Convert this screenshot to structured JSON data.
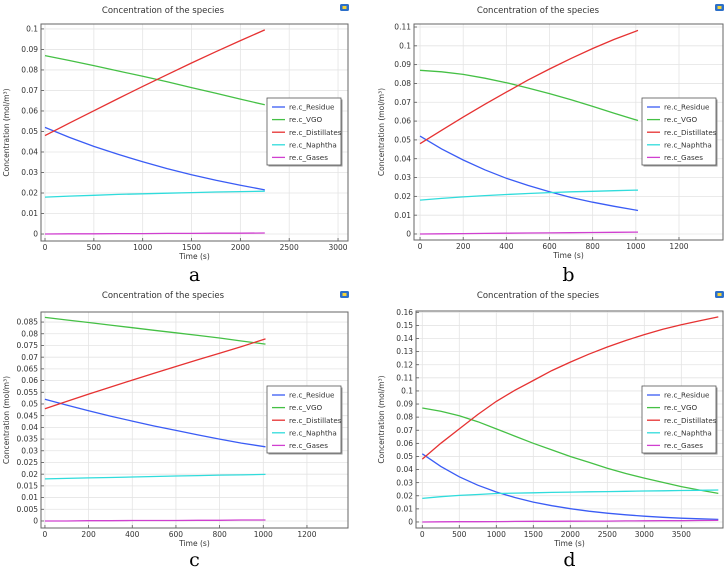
{
  "chart_data": [
    {
      "id": "a",
      "caption": "a",
      "type": "line",
      "title": "Concentration of the species",
      "xlabel": "Time (s)",
      "ylabel": "Concentration (mol/m³)",
      "xlim": [
        -41,
        3102
      ],
      "ylim": [
        -0.0034,
        0.1024
      ],
      "xticks": [
        "0",
        "500",
        "1000",
        "1500",
        "2000",
        "2500",
        "3000"
      ],
      "xtick_values": [
        0,
        500,
        1000,
        1500,
        2000,
        2500,
        3000
      ],
      "yticks": [
        "0",
        "0.01",
        "0.02",
        "0.03",
        "0.04",
        "0.05",
        "0.06",
        "0.07",
        "0.08",
        "0.09",
        "0.1"
      ],
      "ytick_values": [
        0,
        0.01,
        0.02,
        0.03,
        0.04,
        0.05,
        0.06,
        0.07,
        0.08,
        0.09,
        0.1
      ],
      "grid": true,
      "legend_position": "right",
      "x": [
        0,
        250,
        500,
        750,
        1000,
        1250,
        1500,
        1750,
        2000,
        2250
      ],
      "series": [
        {
          "name": "re.c_Residue",
          "color": "#3a5cf5",
          "values": [
            0.052,
            0.0471,
            0.0427,
            0.0388,
            0.0352,
            0.0319,
            0.0289,
            0.0262,
            0.0238,
            0.0215
          ]
        },
        {
          "name": "re.c_VGO",
          "color": "#45c045",
          "values": [
            0.087,
            0.0846,
            0.0821,
            0.0795,
            0.0769,
            0.0742,
            0.0714,
            0.0686,
            0.0658,
            0.063
          ]
        },
        {
          "name": "re.c_Distillates",
          "color": "#e63232",
          "values": [
            0.048,
            0.0541,
            0.0601,
            0.0661,
            0.072,
            0.0777,
            0.0834,
            0.0889,
            0.0943,
            0.0995
          ]
        },
        {
          "name": "re.c_Naphtha",
          "color": "#30dcdc",
          "values": [
            0.018,
            0.0185,
            0.0189,
            0.0193,
            0.0196,
            0.0199,
            0.0202,
            0.0205,
            0.0207,
            0.0209
          ]
        },
        {
          "name": "re.c_Gases",
          "color": "#d040d0",
          "values": [
            0,
            0.0001,
            0.0001,
            0.0002,
            0.0002,
            0.0003,
            0.0003,
            0.0004,
            0.0004,
            0.0005
          ]
        }
      ]
    },
    {
      "id": "b",
      "caption": "b",
      "type": "line",
      "title": "Concentration of the species",
      "xlabel": "Time (s)",
      "ylabel": "Concentration (mol/m³)",
      "xlim": [
        -28,
        1404
      ],
      "ylim": [
        -0.0032,
        0.1116
      ],
      "xticks": [
        "0",
        "200",
        "400",
        "600",
        "800",
        "1000",
        "1200"
      ],
      "xtick_values": [
        0,
        200,
        400,
        600,
        800,
        1000,
        1200
      ],
      "yticks": [
        "0",
        "0.01",
        "0.02",
        "0.03",
        "0.04",
        "0.05",
        "0.06",
        "0.07",
        "0.08",
        "0.09",
        "0.1",
        "0.11"
      ],
      "ytick_values": [
        0,
        0.01,
        0.02,
        0.03,
        0.04,
        0.05,
        0.06,
        0.07,
        0.08,
        0.09,
        0.1,
        0.11
      ],
      "grid": true,
      "legend_position": "right",
      "x": [
        0,
        100,
        200,
        300,
        400,
        500,
        600,
        700,
        800,
        900,
        1010
      ],
      "series": [
        {
          "name": "re.c_Residue",
          "color": "#3a5cf5",
          "values": [
            0.052,
            0.0452,
            0.0393,
            0.0341,
            0.0296,
            0.0258,
            0.0224,
            0.0194,
            0.0169,
            0.0147,
            0.0125
          ]
        },
        {
          "name": "re.c_VGO",
          "color": "#45c045",
          "values": [
            0.087,
            0.0862,
            0.0848,
            0.0828,
            0.0804,
            0.0776,
            0.0746,
            0.0713,
            0.0678,
            0.0642,
            0.0603
          ]
        },
        {
          "name": "re.c_Distillates",
          "color": "#e63232",
          "values": [
            0.048,
            0.0551,
            0.0621,
            0.0689,
            0.0754,
            0.0818,
            0.0877,
            0.0933,
            0.0986,
            0.1034,
            0.1082
          ]
        },
        {
          "name": "re.c_Naphtha",
          "color": "#30dcdc",
          "values": [
            0.018,
            0.0189,
            0.0197,
            0.0204,
            0.021,
            0.0215,
            0.022,
            0.0224,
            0.0227,
            0.023,
            0.0233
          ]
        },
        {
          "name": "re.c_Gases",
          "color": "#d040d0",
          "values": [
            0,
            0.0001,
            0.0002,
            0.0003,
            0.0004,
            0.0005,
            0.0006,
            0.0007,
            0.0008,
            0.0009,
            0.001
          ]
        }
      ]
    },
    {
      "id": "c",
      "caption": "c",
      "type": "line",
      "title": "Concentration of the species",
      "xlabel": "Time (s)",
      "ylabel": "Concentration (mol/m³)",
      "xlim": [
        -18,
        1388
      ],
      "ylim": [
        -0.003,
        0.0893
      ],
      "xticks": [
        "0",
        "200",
        "400",
        "600",
        "800",
        "1000",
        "1200"
      ],
      "xtick_values": [
        0,
        200,
        400,
        600,
        800,
        1000,
        1200
      ],
      "yticks": [
        "0",
        "0.005",
        "0.01",
        "0.015",
        "0.02",
        "0.025",
        "0.03",
        "0.035",
        "0.04",
        "0.045",
        "0.05",
        "0.055",
        "0.06",
        "0.065",
        "0.07",
        "0.075",
        "0.08",
        "0.085"
      ],
      "ytick_values": [
        0,
        0.005,
        0.01,
        0.015,
        0.02,
        0.025,
        0.03,
        0.035,
        0.04,
        0.045,
        0.05,
        0.055,
        0.06,
        0.065,
        0.07,
        0.075,
        0.08,
        0.085
      ],
      "grid": true,
      "legend_position": "right",
      "x": [
        0,
        100,
        200,
        300,
        400,
        500,
        600,
        700,
        800,
        900,
        1010
      ],
      "series": [
        {
          "name": "re.c_Residue",
          "color": "#3a5cf5",
          "values": [
            0.052,
            0.0495,
            0.0471,
            0.0448,
            0.0427,
            0.0406,
            0.0387,
            0.0368,
            0.035,
            0.0333,
            0.0317
          ]
        },
        {
          "name": "re.c_VGO",
          "color": "#45c045",
          "values": [
            0.087,
            0.0859,
            0.0848,
            0.0837,
            0.0826,
            0.0815,
            0.0804,
            0.0793,
            0.0782,
            0.0769,
            0.0756
          ]
        },
        {
          "name": "re.c_Distillates",
          "color": "#e63232",
          "values": [
            0.048,
            0.0511,
            0.0542,
            0.0572,
            0.0602,
            0.0631,
            0.066,
            0.0689,
            0.0717,
            0.0745,
            0.0778
          ]
        },
        {
          "name": "re.c_Naphtha",
          "color": "#30dcdc",
          "values": [
            0.018,
            0.0182,
            0.0184,
            0.0186,
            0.0188,
            0.019,
            0.0192,
            0.0194,
            0.0196,
            0.0197,
            0.0199
          ]
        },
        {
          "name": "re.c_Gases",
          "color": "#d040d0",
          "values": [
            0,
            0,
            0.0001,
            0.0001,
            0.0002,
            0.0002,
            0.0002,
            0.0003,
            0.0003,
            0.0004,
            0.0004
          ]
        }
      ]
    },
    {
      "id": "d",
      "caption": "d",
      "type": "line",
      "title": "Concentration of the species",
      "xlabel": "Time (s)",
      "ylabel": "Concentration (mol/m³)",
      "xlim": [
        -85,
        4063
      ],
      "ylim": [
        -0.0046,
        0.161
      ],
      "xticks": [
        "0",
        "500",
        "1000",
        "1500",
        "2000",
        "2500",
        "3000",
        "3500"
      ],
      "xtick_values": [
        0,
        500,
        1000,
        1500,
        2000,
        2500,
        3000,
        3500
      ],
      "yticks": [
        "0",
        "0.01",
        "0.02",
        "0.03",
        "0.04",
        "0.05",
        "0.06",
        "0.07",
        "0.08",
        "0.09",
        "0.1",
        "0.11",
        "0.12",
        "0.13",
        "0.14",
        "0.15",
        "0.16"
      ],
      "ytick_values": [
        0,
        0.01,
        0.02,
        0.03,
        0.04,
        0.05,
        0.06,
        0.07,
        0.08,
        0.09,
        0.1,
        0.11,
        0.12,
        0.13,
        0.14,
        0.15,
        0.16
      ],
      "grid": true,
      "legend_position": "right",
      "x": [
        0,
        250,
        500,
        750,
        1000,
        1250,
        1500,
        1750,
        2000,
        2250,
        2500,
        2750,
        3000,
        3250,
        3500,
        3750,
        4000
      ],
      "series": [
        {
          "name": "re.c_Residue",
          "color": "#3a5cf5",
          "values": [
            0.052,
            0.0424,
            0.0345,
            0.0281,
            0.0229,
            0.0187,
            0.0152,
            0.0124,
            0.0101,
            0.0082,
            0.0067,
            0.0055,
            0.0044,
            0.0036,
            0.0029,
            0.0024,
            0.002
          ]
        },
        {
          "name": "re.c_VGO",
          "color": "#45c045",
          "values": [
            0.087,
            0.0845,
            0.081,
            0.0765,
            0.071,
            0.0655,
            0.06,
            0.055,
            0.05,
            0.0455,
            0.041,
            0.037,
            0.0335,
            0.0302,
            0.027,
            0.0243,
            0.0218
          ]
        },
        {
          "name": "re.c_Distillates",
          "color": "#e63232",
          "values": [
            0.048,
            0.06,
            0.071,
            0.082,
            0.092,
            0.1005,
            0.108,
            0.1155,
            0.122,
            0.128,
            0.1335,
            0.1385,
            0.143,
            0.147,
            0.1505,
            0.1535,
            0.1565
          ]
        },
        {
          "name": "re.c_Naphtha",
          "color": "#30dcdc",
          "values": [
            0.018,
            0.0193,
            0.0203,
            0.021,
            0.0217,
            0.022,
            0.0223,
            0.0226,
            0.0228,
            0.023,
            0.0232,
            0.0234,
            0.0236,
            0.0238,
            0.024,
            0.0242,
            0.0244
          ]
        },
        {
          "name": "re.c_Gases",
          "color": "#d040d0",
          "values": [
            0,
            0.0001,
            0.0002,
            0.0002,
            0.0003,
            0.0004,
            0.0005,
            0.0005,
            0.0006,
            0.0007,
            0.0007,
            0.0008,
            0.0009,
            0.001,
            0.001,
            0.0011,
            0.0012
          ]
        }
      ]
    }
  ]
}
